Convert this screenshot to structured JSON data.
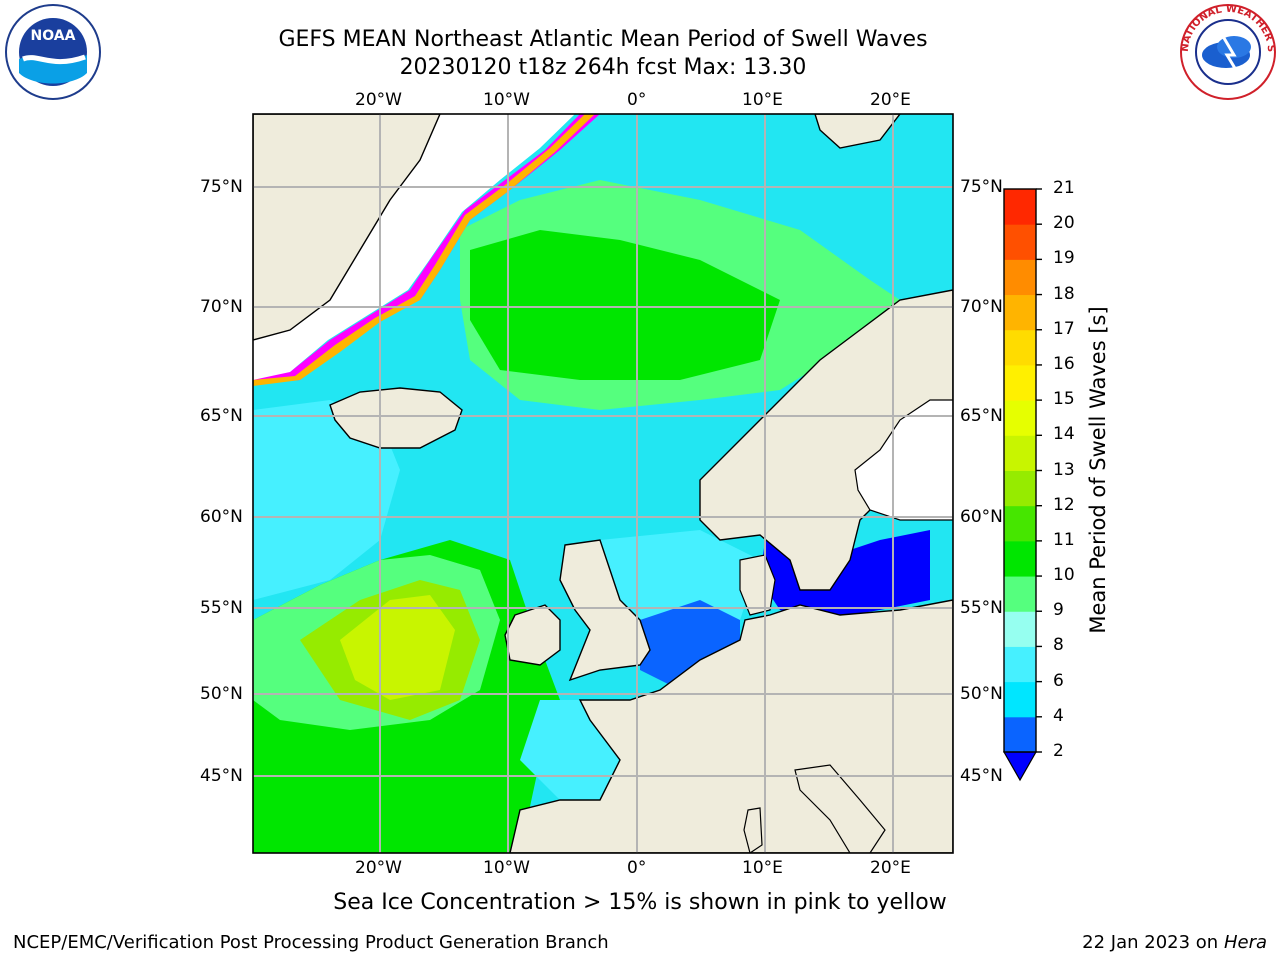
{
  "title": {
    "line1": "GEFS MEAN Northeast Atlantic Mean Period of Swell Waves",
    "line2": "20230120 t18z 264h fcst   Max: 13.30"
  },
  "map": {
    "lon_labels": [
      "20°W",
      "10°W",
      "0°",
      "10°E",
      "20°E"
    ],
    "lat_labels": [
      "75°N",
      "70°N",
      "65°N",
      "60°N",
      "55°N",
      "50°N",
      "45°N"
    ],
    "ice_note": "Sea Ice Concentration > 15% is shown in pink to yellow",
    "colors": {
      "land": "#efecdc",
      "grid": "#b4b4b4",
      "ocean_base": "#22e6f2"
    }
  },
  "colorbar": {
    "title": "Mean Period of Swell Waves [s]",
    "ticks": [
      "2",
      "4",
      "6",
      "8",
      "9",
      "10",
      "11",
      "12",
      "13",
      "14",
      "15",
      "16",
      "17",
      "18",
      "19",
      "20",
      "21"
    ],
    "colors": [
      "#0a64ff",
      "#00e6ff",
      "#46f0ff",
      "#96fff0",
      "#55ff7e",
      "#00e600",
      "#46e600",
      "#96eb00",
      "#c8f500",
      "#e6ff00",
      "#fff000",
      "#ffdc00",
      "#ffb400",
      "#ff8c00",
      "#ff5000",
      "#ff2800"
    ],
    "under_color": "#0000ff"
  },
  "logos": {
    "noaa": "NOAA",
    "nws_ring": "NATIONAL WEATHER SERVICE"
  },
  "footer": {
    "left": "NCEP/EMC/Verification Post Processing Product Generation Branch",
    "right_prefix": "22 Jan 2023 on ",
    "right_host": "Hera"
  }
}
